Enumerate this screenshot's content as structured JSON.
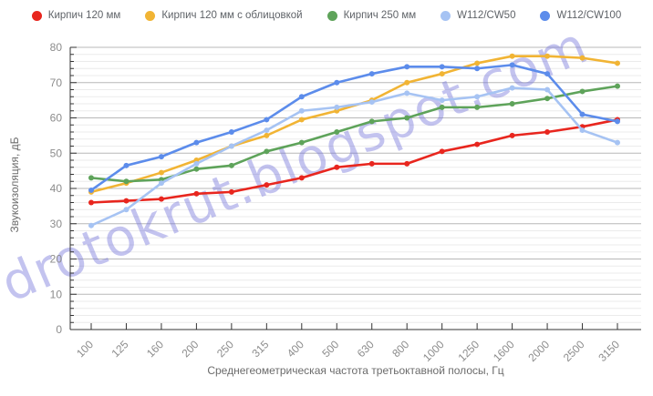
{
  "watermark": {
    "text": "drotokrut.blogspot.com",
    "color": "#6f6fd8",
    "opacity": 0.42
  },
  "axis": {
    "text_color": "#8c8c8c",
    "title_color": "#6b6b6b",
    "line_color": "#333333",
    "grid_major_color": "#b8b8b8",
    "grid_minor_color": "#ebebeb"
  },
  "chart_data": {
    "type": "line",
    "title": "",
    "xlabel": "Среднегеометрическая частота третьоктавной полосы, Гц",
    "ylabel": "Звукоизоляция, дБ",
    "categories": [
      "100",
      "125",
      "160",
      "200",
      "250",
      "315",
      "400",
      "500",
      "630",
      "800",
      "1000",
      "1250",
      "1600",
      "2000",
      "2500",
      "3150"
    ],
    "ylim": [
      0,
      80
    ],
    "y_major_step": 10,
    "y_minor_step": 2,
    "grid": true,
    "legend_position": "top",
    "series": [
      {
        "key": "brick-120",
        "name": "Кирпич 120 мм",
        "color": "#e8261e",
        "values": [
          36,
          36.5,
          37,
          38.5,
          39,
          41,
          43,
          46,
          47,
          47,
          50.5,
          52.5,
          55,
          56,
          57.5,
          59.5
        ]
      },
      {
        "key": "brick-120-clad",
        "name": "Кирпич 120 мм с облицовкой",
        "color": "#f1b434",
        "values": [
          39,
          41.5,
          44.5,
          48,
          52,
          55,
          59.5,
          62,
          65,
          70,
          72.5,
          75.5,
          77.5,
          77.5,
          77,
          75.5
        ]
      },
      {
        "key": "brick-250",
        "name": "Кирпич 250 мм",
        "color": "#5ea35a",
        "values": [
          43,
          42,
          42.5,
          45.5,
          46.5,
          50.5,
          53,
          56,
          59,
          60,
          63,
          63,
          64,
          65.5,
          67.5,
          69
        ]
      },
      {
        "key": "w112-cw50",
        "name": "W112/CW50",
        "color": "#a6c3f3",
        "values": [
          29.5,
          34,
          41.5,
          47,
          52,
          56.5,
          62,
          63,
          64.5,
          67,
          65,
          66,
          68.5,
          68,
          56.5,
          53
        ]
      },
      {
        "key": "w112-cw100",
        "name": "W112/CW100",
        "color": "#5c8ceb",
        "values": [
          39.5,
          46.5,
          49,
          53,
          56,
          59.5,
          66,
          70,
          72.5,
          74.5,
          74.5,
          74,
          75,
          72.5,
          61,
          59
        ]
      }
    ]
  }
}
